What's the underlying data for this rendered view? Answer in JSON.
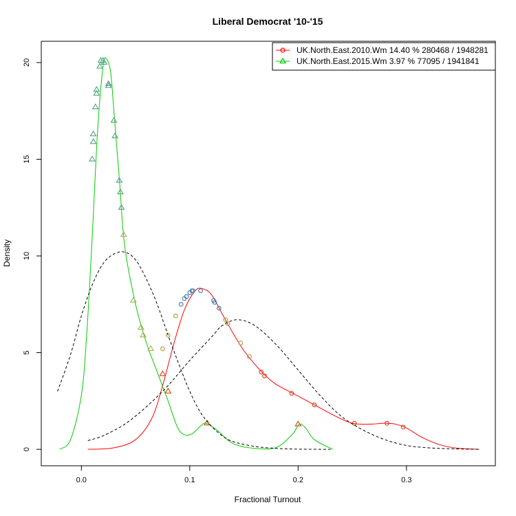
{
  "chart_data": {
    "type": "line",
    "title": "Liberal Democrat '10-'15",
    "xlabel": "Fractional Turnout",
    "ylabel": "Density",
    "xlim": [
      -0.037,
      0.382
    ],
    "ylim": [
      -0.85,
      21.1
    ],
    "x_ticks": [
      0.0,
      0.1,
      0.2,
      0.3
    ],
    "x_tick_labels": [
      "0.0",
      "0.1",
      "0.2",
      "0.3"
    ],
    "y_ticks": [
      0,
      5,
      10,
      15,
      20
    ],
    "y_tick_labels": [
      "0",
      "5",
      "10",
      "15",
      "20"
    ],
    "grid": false,
    "legend_position": "top-right",
    "series": [
      {
        "name": "UK.North.East.2010.Wm 14.40 % 280468 / 1948281",
        "color": "#ff0000",
        "marker": "circle",
        "curve": [
          [
            0.006,
            0.0
          ],
          [
            0.03,
            0.08
          ],
          [
            0.05,
            0.5
          ],
          [
            0.065,
            1.6
          ],
          [
            0.075,
            3.3
          ],
          [
            0.085,
            5.4
          ],
          [
            0.095,
            7.2
          ],
          [
            0.105,
            8.2
          ],
          [
            0.112,
            8.3
          ],
          [
            0.12,
            8.0
          ],
          [
            0.13,
            7.0
          ],
          [
            0.14,
            6.0
          ],
          [
            0.15,
            5.1
          ],
          [
            0.16,
            4.4
          ],
          [
            0.17,
            3.8
          ],
          [
            0.18,
            3.35
          ],
          [
            0.195,
            2.9
          ],
          [
            0.215,
            2.3
          ],
          [
            0.235,
            1.7
          ],
          [
            0.25,
            1.35
          ],
          [
            0.265,
            1.3
          ],
          [
            0.28,
            1.35
          ],
          [
            0.29,
            1.3
          ],
          [
            0.3,
            1.1
          ],
          [
            0.315,
            0.6
          ],
          [
            0.33,
            0.25
          ],
          [
            0.345,
            0.07
          ],
          [
            0.367,
            0.0
          ]
        ],
        "points": [
          [
            0.075,
            5.2
          ],
          [
            0.08,
            5.9
          ],
          [
            0.087,
            6.9
          ],
          [
            0.092,
            7.5
          ],
          [
            0.095,
            7.8
          ],
          [
            0.097,
            7.9
          ],
          [
            0.1,
            8.1
          ],
          [
            0.102,
            8.2
          ],
          [
            0.103,
            8.2
          ],
          [
            0.11,
            8.2
          ],
          [
            0.122,
            7.7
          ],
          [
            0.123,
            7.6
          ],
          [
            0.127,
            7.3
          ],
          [
            0.133,
            6.7
          ],
          [
            0.135,
            6.5
          ],
          [
            0.147,
            5.5
          ],
          [
            0.155,
            4.8
          ],
          [
            0.166,
            4.0
          ],
          [
            0.169,
            3.8
          ],
          [
            0.194,
            2.9
          ],
          [
            0.215,
            2.3
          ],
          [
            0.252,
            1.35
          ],
          [
            0.282,
            1.35
          ],
          [
            0.297,
            1.15
          ]
        ]
      },
      {
        "name": "UK.North.East.2015.Wm  3.97 % 77095 / 1941841",
        "color": "#00cc00",
        "marker": "triangle",
        "curve": [
          [
            -0.02,
            0.0
          ],
          [
            -0.01,
            0.5
          ],
          [
            0.0,
            2.8
          ],
          [
            0.005,
            6.0
          ],
          [
            0.01,
            11.0
          ],
          [
            0.015,
            16.5
          ],
          [
            0.02,
            19.8
          ],
          [
            0.023,
            20.2
          ],
          [
            0.027,
            19.5
          ],
          [
            0.03,
            17.5
          ],
          [
            0.035,
            14.0
          ],
          [
            0.04,
            10.5
          ],
          [
            0.05,
            7.5
          ],
          [
            0.06,
            5.5
          ],
          [
            0.07,
            4.0
          ],
          [
            0.08,
            2.5
          ],
          [
            0.09,
            1.0
          ],
          [
            0.1,
            0.75
          ],
          [
            0.11,
            1.2
          ],
          [
            0.115,
            1.35
          ],
          [
            0.125,
            1.0
          ],
          [
            0.14,
            0.3
          ],
          [
            0.16,
            0.05
          ],
          [
            0.18,
            0.1
          ],
          [
            0.195,
            0.8
          ],
          [
            0.201,
            1.3
          ],
          [
            0.207,
            1.1
          ],
          [
            0.215,
            0.5
          ],
          [
            0.232,
            0.0
          ]
        ],
        "points": [
          [
            0.01,
            15.0
          ],
          [
            0.011,
            15.9
          ],
          [
            0.011,
            16.3
          ],
          [
            0.013,
            17.7
          ],
          [
            0.014,
            18.4
          ],
          [
            0.014,
            18.6
          ],
          [
            0.017,
            19.8
          ],
          [
            0.018,
            20.1
          ],
          [
            0.02,
            20.1
          ],
          [
            0.021,
            20.0
          ],
          [
            0.025,
            18.9
          ],
          [
            0.025,
            18.8
          ],
          [
            0.03,
            17.0
          ],
          [
            0.031,
            16.2
          ],
          [
            0.035,
            13.9
          ],
          [
            0.036,
            13.3
          ],
          [
            0.037,
            12.5
          ],
          [
            0.039,
            11.1
          ],
          [
            0.048,
            7.7
          ],
          [
            0.055,
            6.3
          ],
          [
            0.057,
            5.9
          ],
          [
            0.064,
            5.2
          ],
          [
            0.075,
            3.9
          ],
          [
            0.08,
            3.0
          ],
          [
            0.116,
            1.35
          ],
          [
            0.2,
            1.3
          ]
        ]
      },
      {
        "color": "#000000",
        "dashed": true,
        "curve": [
          [
            -0.022,
            3.0
          ],
          [
            -0.01,
            4.9
          ],
          [
            0.0,
            6.9
          ],
          [
            0.01,
            8.5
          ],
          [
            0.02,
            9.6
          ],
          [
            0.03,
            10.1
          ],
          [
            0.04,
            10.2
          ],
          [
            0.05,
            9.8
          ],
          [
            0.06,
            8.8
          ],
          [
            0.07,
            7.5
          ],
          [
            0.08,
            5.9
          ],
          [
            0.09,
            4.4
          ],
          [
            0.1,
            3.0
          ],
          [
            0.11,
            1.9
          ],
          [
            0.12,
            1.2
          ],
          [
            0.13,
            0.7
          ],
          [
            0.14,
            0.4
          ],
          [
            0.16,
            0.15
          ],
          [
            0.18,
            0.05
          ],
          [
            0.2,
            0.01
          ],
          [
            0.23,
            0.0
          ]
        ]
      },
      {
        "color": "#000000",
        "dashed": true,
        "curve": [
          [
            0.006,
            0.45
          ],
          [
            0.02,
            0.7
          ],
          [
            0.04,
            1.3
          ],
          [
            0.06,
            2.2
          ],
          [
            0.08,
            3.3
          ],
          [
            0.1,
            4.6
          ],
          [
            0.12,
            5.8
          ],
          [
            0.13,
            6.4
          ],
          [
            0.144,
            6.7
          ],
          [
            0.16,
            6.4
          ],
          [
            0.18,
            5.4
          ],
          [
            0.2,
            4.1
          ],
          [
            0.22,
            2.8
          ],
          [
            0.24,
            1.7
          ],
          [
            0.26,
            1.0
          ],
          [
            0.28,
            0.5
          ],
          [
            0.3,
            0.2
          ],
          [
            0.32,
            0.08
          ],
          [
            0.34,
            0.03
          ],
          [
            0.367,
            0.0
          ]
        ]
      }
    ]
  }
}
